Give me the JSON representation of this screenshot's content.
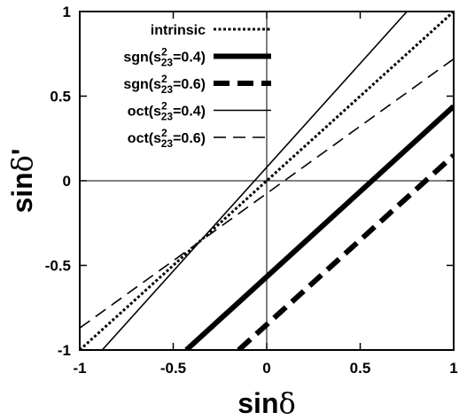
{
  "chart_data": {
    "type": "line",
    "xlabel": {
      "main": "sin",
      "greek": "δ",
      "suffix": ""
    },
    "ylabel": {
      "main": "sin",
      "greek": "δ",
      "suffix": "'"
    },
    "xlim": [
      -1,
      1
    ],
    "ylim": [
      -1,
      1
    ],
    "xticks": [
      {
        "value": -1,
        "label": "-1"
      },
      {
        "value": -0.5,
        "label": "-0.5"
      },
      {
        "value": 0,
        "label": "0"
      },
      {
        "value": 0.5,
        "label": "0.5"
      },
      {
        "value": 1,
        "label": "1"
      }
    ],
    "yticks": [
      {
        "value": -1,
        "label": "-1"
      },
      {
        "value": -0.5,
        "label": "-0.5"
      },
      {
        "value": 0,
        "label": "0"
      },
      {
        "value": 0.5,
        "label": "0.5"
      },
      {
        "value": 1,
        "label": "1"
      }
    ],
    "zero_lines": true,
    "grid": false,
    "legend_position": "top-left",
    "series": [
      {
        "key": "intrinsic",
        "legend": {
          "pre": "intrinsic",
          "sup": "",
          "sub": "",
          "post": ""
        },
        "style": "dotted-medium",
        "points": [
          [
            -1,
            -1
          ],
          [
            1,
            1
          ]
        ]
      },
      {
        "key": "sgn04",
        "legend": {
          "pre": "sgn(s",
          "sup": "2",
          "sub": "23",
          "post": "=0.4)"
        },
        "style": "solid-thick",
        "points": [
          [
            -0.43,
            -1
          ],
          [
            1,
            0.44
          ]
        ]
      },
      {
        "key": "sgn06",
        "legend": {
          "pre": "sgn(s",
          "sup": "2",
          "sub": "23",
          "post": "=0.6)"
        },
        "style": "dashed-thick",
        "points": [
          [
            -0.15,
            -1
          ],
          [
            1,
            0.15
          ]
        ]
      },
      {
        "key": "oct04",
        "legend": {
          "pre": "oct(s",
          "sup": "2",
          "sub": "23",
          "post": "=0.4)"
        },
        "style": "solid-thin",
        "points": [
          [
            -0.88,
            -1
          ],
          [
            0.75,
            1
          ]
        ]
      },
      {
        "key": "oct06",
        "legend": {
          "pre": "oct(s",
          "sup": "2",
          "sub": "23",
          "post": "=0.6)"
        },
        "style": "dashed-thin",
        "points": [
          [
            -1,
            -0.87
          ],
          [
            1,
            0.72
          ]
        ]
      }
    ]
  }
}
